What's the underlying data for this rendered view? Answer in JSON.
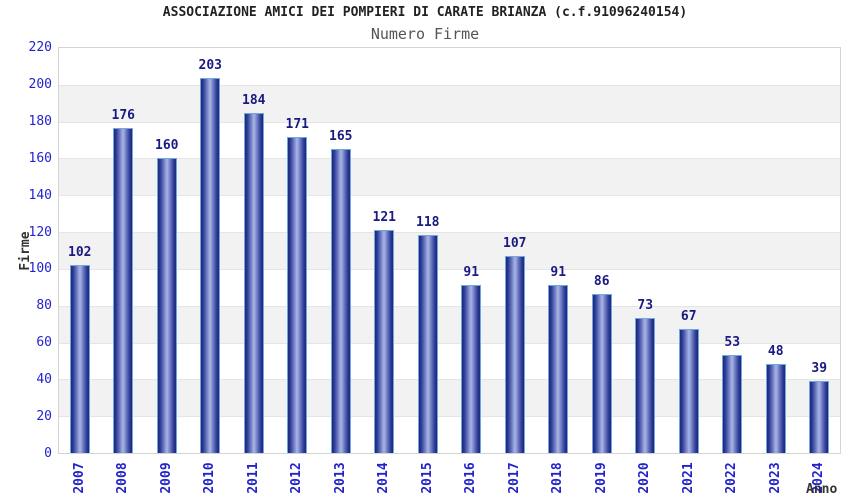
{
  "page": {
    "title": "ASSOCIAZIONE AMICI DEI POMPIERI DI CARATE BRIANZA (c.f.91096240154)",
    "subtitle": "Numero Firme"
  },
  "chart_data": {
    "type": "bar",
    "title": "Numero Firme",
    "categories": [
      "2007",
      "2008",
      "2009",
      "2010",
      "2011",
      "2012",
      "2013",
      "2014",
      "2015",
      "2016",
      "2017",
      "2018",
      "2019",
      "2020",
      "2021",
      "2022",
      "2023",
      "2024"
    ],
    "values": [
      102,
      176,
      160,
      203,
      184,
      171,
      165,
      121,
      118,
      91,
      107,
      91,
      86,
      73,
      67,
      53,
      48,
      39
    ],
    "xlabel": "Anno",
    "ylabel": "Firme",
    "ylim": [
      0,
      220
    ],
    "ytick_step": 20,
    "grid": "alternating-horizontal-bands",
    "legend": "none",
    "value_labels_shown": true
  },
  "colors": {
    "background": "#ffffff",
    "title_text": "#222222",
    "subtitle_text": "#555555",
    "axis_title_text": "#333333",
    "axis_tick_label": "#2323cc",
    "value_label": "#1a1a80",
    "bar_edge": "#1e2878",
    "bar_center": "#aab6e6",
    "bar_outline": "#6fa8dc",
    "band_gray": "#f2f2f2",
    "band_line": "#e5e5e5",
    "plot_border": "#d4d4d4"
  }
}
